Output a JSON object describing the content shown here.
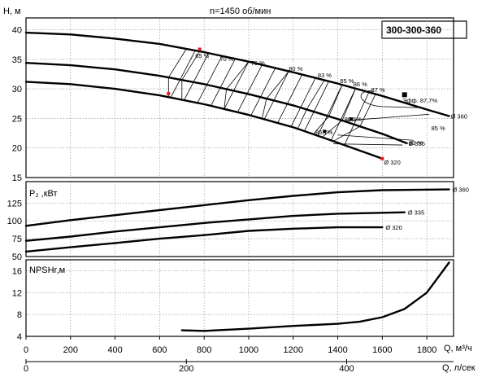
{
  "chart_data": {
    "type": "line",
    "title": "n=1450 об/мин",
    "model_label": "300-300-360",
    "x_axis_primary": {
      "label": "Q, м³/ч",
      "lim": [
        0,
        1920
      ],
      "ticks": [
        0,
        200,
        400,
        600,
        800,
        1000,
        1200,
        1400,
        1600,
        1800
      ]
    },
    "x_axis_secondary": {
      "label": "Q, л/сек",
      "ticks": [
        0,
        200,
        400
      ]
    },
    "panels": [
      {
        "id": "head",
        "ylabel": "H, м",
        "ylim": [
          15,
          42
        ],
        "yticks": [
          15,
          20,
          25,
          30,
          35,
          40
        ],
        "series": [
          {
            "name": "Ø 360",
            "x": [
              0,
              200,
              400,
              600,
              800,
              1000,
              1200,
              1400,
              1600,
              1800,
              1900
            ],
            "y": [
              39.5,
              39.2,
              38.5,
              37.6,
              36.2,
              34.6,
              32.8,
              30.9,
              28.8,
              26.5,
              25.4
            ]
          },
          {
            "name": "Ø 335",
            "x": [
              0,
              200,
              400,
              600,
              800,
              1000,
              1200,
              1400,
              1600,
              1710
            ],
            "y": [
              34.4,
              34.0,
              33.3,
              32.2,
              30.8,
              29.1,
              27.2,
              24.9,
              22.4,
              20.8
            ]
          },
          {
            "name": "Ø 320",
            "x": [
              0,
              200,
              400,
              600,
              800,
              1000,
              1200,
              1400,
              1600
            ],
            "y": [
              31.2,
              30.8,
              30.0,
              28.9,
              27.4,
              25.6,
              23.5,
              20.9,
              18.2
            ]
          }
        ],
        "efficiency_labels": [
          "65 %",
          "70 %",
          "75 %",
          "80 %",
          "83 %",
          "85 %",
          "86 %",
          "87 %",
          "Эфф. 87,7%",
          "86,5%",
          "85 %",
          "83 %",
          "85,7%"
        ],
        "series_labels": [
          "Ø 360",
          "Ø 335",
          "Ø 320"
        ]
      },
      {
        "id": "power",
        "ylabel": "P₂ ,кВт",
        "ylim": [
          50,
          155
        ],
        "yticks": [
          50,
          75,
          100,
          125
        ],
        "series": [
          {
            "name": "Ø 360",
            "x": [
              0,
              200,
              400,
              600,
              800,
              1000,
              1200,
              1400,
              1600,
              1900
            ],
            "y": [
              93,
              101,
              108,
              115,
              122,
              129,
              135,
              140,
              143,
              144
            ]
          },
          {
            "name": "Ø 335",
            "x": [
              0,
              200,
              400,
              600,
              800,
              1000,
              1200,
              1400,
              1700
            ],
            "y": [
              72,
              78,
              85,
              91,
              97,
              102,
              107,
              110,
              112
            ]
          },
          {
            "name": "Ø 320",
            "x": [
              0,
              200,
              400,
              600,
              800,
              1000,
              1200,
              1400,
              1600
            ],
            "y": [
              57,
              63,
              69,
              75,
              80,
              86,
              89,
              91,
              91
            ]
          }
        ],
        "series_labels": [
          "Ø 360",
          "Ø 335",
          "Ø 320"
        ]
      },
      {
        "id": "npsh",
        "ylabel": "NPSHr,м",
        "ylim": [
          4,
          18
        ],
        "yticks": [
          4,
          8,
          12,
          16
        ],
        "series": [
          {
            "name": "",
            "x": [
              700,
              800,
              1000,
              1200,
              1400,
              1500,
              1600,
              1700,
              1800,
              1900
            ],
            "y": [
              5.1,
              5.0,
              5.4,
              5.9,
              6.3,
              6.7,
              7.5,
              9.0,
              12.0,
              17.5
            ]
          }
        ]
      }
    ]
  }
}
